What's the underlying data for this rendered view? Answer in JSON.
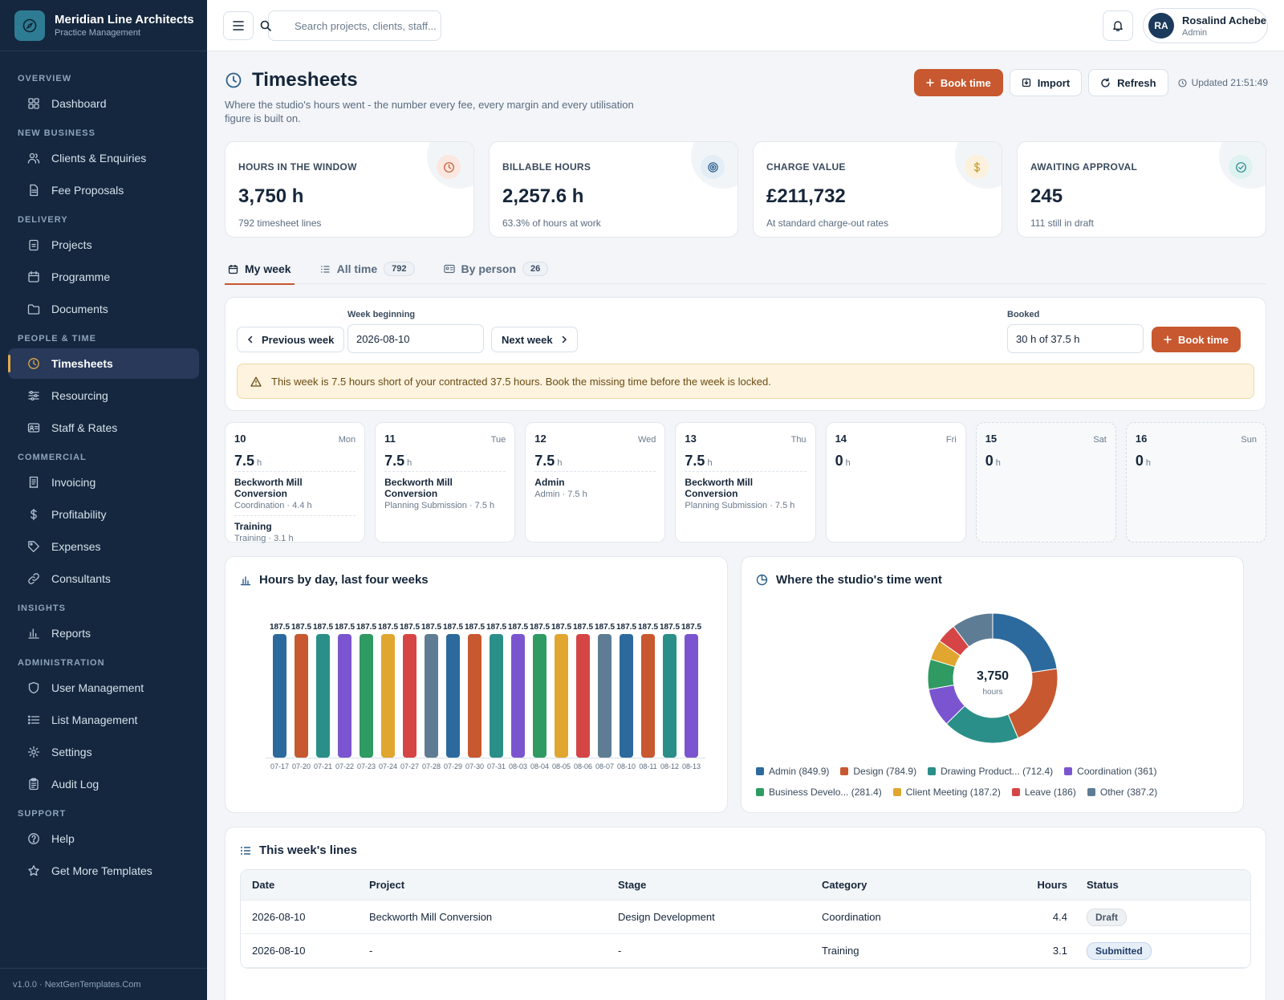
{
  "brand": {
    "name": "Meridian Line Architects",
    "subtitle": "Practice Management"
  },
  "nav": [
    {
      "heading": "OVERVIEW",
      "items": [
        {
          "label": "Dashboard",
          "icon": "grid-icon"
        }
      ]
    },
    {
      "heading": "NEW BUSINESS",
      "items": [
        {
          "label": "Clients & Enquiries",
          "icon": "users-icon"
        },
        {
          "label": "Fee Proposals",
          "icon": "file-icon"
        }
      ]
    },
    {
      "heading": "DELIVERY",
      "items": [
        {
          "label": "Projects",
          "icon": "clipboard-icon"
        },
        {
          "label": "Programme",
          "icon": "calendar-icon"
        },
        {
          "label": "Documents",
          "icon": "folder-icon"
        }
      ]
    },
    {
      "heading": "PEOPLE & TIME",
      "items": [
        {
          "label": "Timesheets",
          "icon": "clock-icon",
          "active": true
        },
        {
          "label": "Resourcing",
          "icon": "sliders-icon"
        },
        {
          "label": "Staff & Rates",
          "icon": "id-card-icon"
        }
      ]
    },
    {
      "heading": "COMMERCIAL",
      "items": [
        {
          "label": "Invoicing",
          "icon": "receipt-icon"
        },
        {
          "label": "Profitability",
          "icon": "dollar-icon"
        },
        {
          "label": "Expenses",
          "icon": "tag-icon"
        },
        {
          "label": "Consultants",
          "icon": "link-icon"
        }
      ]
    },
    {
      "heading": "INSIGHTS",
      "items": [
        {
          "label": "Reports",
          "icon": "bar-chart-icon"
        }
      ]
    },
    {
      "heading": "ADMINISTRATION",
      "items": [
        {
          "label": "User Management",
          "icon": "shield-icon"
        },
        {
          "label": "List Management",
          "icon": "list-icon"
        },
        {
          "label": "Settings",
          "icon": "gear-icon"
        },
        {
          "label": "Audit Log",
          "icon": "clipboard-list-icon"
        }
      ]
    },
    {
      "heading": "SUPPORT",
      "items": [
        {
          "label": "Help",
          "icon": "help-icon"
        },
        {
          "label": "Get More Templates",
          "icon": "star-icon"
        }
      ]
    }
  ],
  "footer": "v1.0.0 · NextGenTemplates.Com",
  "topbar": {
    "search_placeholder": "Search projects, clients, staff...",
    "user_initials": "RA",
    "user_name": "Rosalind Achebe",
    "user_role": "Admin"
  },
  "page": {
    "title": "Timesheets",
    "subtitle": "Where the studio's hours went - the number every fee, every margin and every utilisation figure is built on.",
    "book_time": "Book time",
    "import": "Import",
    "refresh": "Refresh",
    "updated": "Updated 21:51:49"
  },
  "stats": [
    {
      "label": "HOURS IN THE WINDOW",
      "value": "3,750 h",
      "note": "792 timesheet lines",
      "icon": "clock-icon",
      "color": "#c8582f",
      "bg": "#fbe7df"
    },
    {
      "label": "BILLABLE HOURS",
      "value": "2,257.6 h",
      "note": "63.3% of hours at work",
      "icon": "target-icon",
      "color": "#2c5f8a",
      "bg": "#e3edf6"
    },
    {
      "label": "CHARGE VALUE",
      "value": "£211,732",
      "note": "At standard charge-out rates",
      "icon": "dollar-icon",
      "color": "#c99a2e",
      "bg": "#fbf1dc"
    },
    {
      "label": "AWAITING APPROVAL",
      "value": "245",
      "note": "111 still in draft",
      "icon": "check-circle-icon",
      "color": "#2a8a8a",
      "bg": "#def2f1"
    }
  ],
  "tabs": [
    {
      "label": "My week"
    },
    {
      "label": "All time",
      "count": "792"
    },
    {
      "label": "By person",
      "count": "26"
    }
  ],
  "week": {
    "prev": "Previous week",
    "week_label": "Week beginning",
    "week_value": "2026-08-10",
    "next": "Next week",
    "booked_label": "Booked",
    "booked_value": "30 h of 37.5 h",
    "book_time": "Book time",
    "alert": "This week is 7.5 hours short of your contracted 37.5 hours. Book the missing time before the week is locked."
  },
  "days": [
    {
      "num": "10",
      "name": "Mon",
      "hours": "7.5",
      "entries": [
        {
          "title": "Beckworth Mill Conversion",
          "sub": "Coordination · 4.4 h"
        },
        {
          "title": "Training",
          "sub": "Training · 3.1 h"
        }
      ]
    },
    {
      "num": "11",
      "name": "Tue",
      "hours": "7.5",
      "entries": [
        {
          "title": "Beckworth Mill Conversion",
          "sub": "Planning Submission · 7.5 h"
        }
      ]
    },
    {
      "num": "12",
      "name": "Wed",
      "hours": "7.5",
      "entries": [
        {
          "title": "Admin",
          "sub": "Admin · 7.5 h"
        }
      ]
    },
    {
      "num": "13",
      "name": "Thu",
      "hours": "7.5",
      "entries": [
        {
          "title": "Beckworth Mill Conversion",
          "sub": "Planning Submission · 7.5 h"
        }
      ]
    },
    {
      "num": "14",
      "name": "Fri",
      "hours": "0",
      "entries": []
    },
    {
      "num": "15",
      "name": "Sat",
      "hours": "0",
      "entries": [],
      "weekend": true
    },
    {
      "num": "16",
      "name": "Sun",
      "hours": "0",
      "entries": [],
      "weekend": true
    }
  ],
  "hour_unit": "h",
  "panels": {
    "bar_title": "Hours by day, last four weeks",
    "donut_title": "Where the studio's time went",
    "donut_total": "3,750",
    "donut_unit": "hours"
  },
  "chart_data": [
    {
      "type": "bar",
      "categories": [
        "07-17",
        "07-20",
        "07-21",
        "07-22",
        "07-23",
        "07-24",
        "07-27",
        "07-28",
        "07-29",
        "07-30",
        "07-31",
        "08-03",
        "08-04",
        "08-05",
        "08-06",
        "08-07",
        "08-10",
        "08-11",
        "08-12",
        "08-13"
      ],
      "values": [
        187.5,
        187.5,
        187.5,
        187.5,
        187.5,
        187.5,
        187.5,
        187.5,
        187.5,
        187.5,
        187.5,
        187.5,
        187.5,
        187.5,
        187.5,
        187.5,
        187.5,
        187.5,
        187.5,
        187.5
      ],
      "colors": [
        "#2c6a9e",
        "#c8582f",
        "#2a8f88",
        "#7b55d0",
        "#2f9a62",
        "#e0a62f",
        "#d64545",
        "#5e7d94"
      ],
      "title": "Hours by day, last four weeks"
    },
    {
      "type": "pie",
      "title": "Where the studio's time went",
      "center_value": "3,750",
      "center_label": "hours",
      "slices": [
        {
          "label": "Admin (849.9)",
          "value": 849.9,
          "color": "#2c6a9e"
        },
        {
          "label": "Design (784.9)",
          "value": 784.9,
          "color": "#c8582f"
        },
        {
          "label": "Drawing Product... (712.4)",
          "value": 712.4,
          "color": "#2a8f88"
        },
        {
          "label": "Coordination (361)",
          "value": 361,
          "color": "#7b55d0"
        },
        {
          "label": "Business Develo... (281.4)",
          "value": 281.4,
          "color": "#2f9a62"
        },
        {
          "label": "Client Meeting (187.2)",
          "value": 187.2,
          "color": "#e0a62f"
        },
        {
          "label": "Leave (186)",
          "value": 186,
          "color": "#d64545"
        },
        {
          "label": "Other (387.2)",
          "value": 387.2,
          "color": "#5e7d94"
        }
      ]
    }
  ],
  "lines": {
    "title": "This week's lines",
    "headers": [
      "Date",
      "Project",
      "Stage",
      "Category",
      "Hours",
      "Status"
    ],
    "rows": [
      {
        "date": "2026-08-10",
        "project": "Beckworth Mill Conversion",
        "stage": "Design Development",
        "category": "Coordination",
        "hours": "4.4",
        "status": "Draft"
      },
      {
        "date": "2026-08-10",
        "project": "-",
        "stage": "-",
        "category": "Training",
        "hours": "3.1",
        "status": "Submitted"
      }
    ]
  }
}
